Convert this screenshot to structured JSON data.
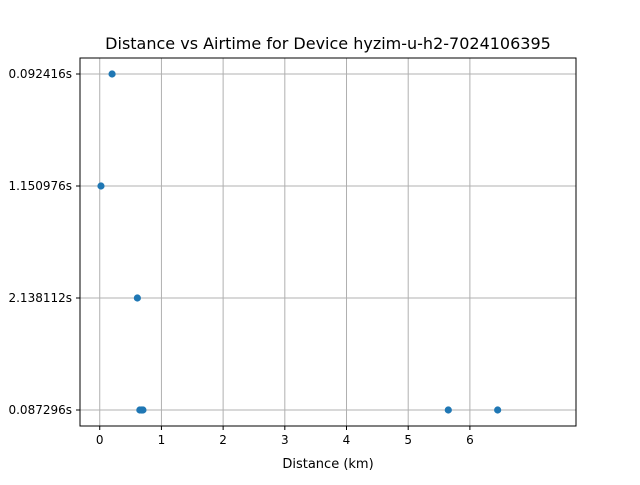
{
  "chart_data": {
    "type": "scatter",
    "title": "Distance vs Airtime for Device hyzim-u-h2-7024106395",
    "xlabel": "Distance (km)",
    "ylabel": "",
    "xlim": [
      -0.32,
      7.72
    ],
    "x_ticks": [
      0,
      1,
      2,
      3,
      4,
      5,
      6
    ],
    "y_categories": [
      "0.087296s",
      "2.138112s",
      "1.150976s",
      "0.092416s"
    ],
    "grid": true,
    "marker_color": "#1f77b4",
    "points": [
      {
        "x": 0.2,
        "y": "0.092416s"
      },
      {
        "x": 0.02,
        "y": "1.150976s"
      },
      {
        "x": 0.61,
        "y": "2.138112s"
      },
      {
        "x": 0.65,
        "y": "0.087296s"
      },
      {
        "x": 0.68,
        "y": "0.087296s"
      },
      {
        "x": 0.7,
        "y": "0.087296s"
      },
      {
        "x": 5.65,
        "y": "0.087296s"
      },
      {
        "x": 6.45,
        "y": "0.087296s"
      }
    ]
  }
}
